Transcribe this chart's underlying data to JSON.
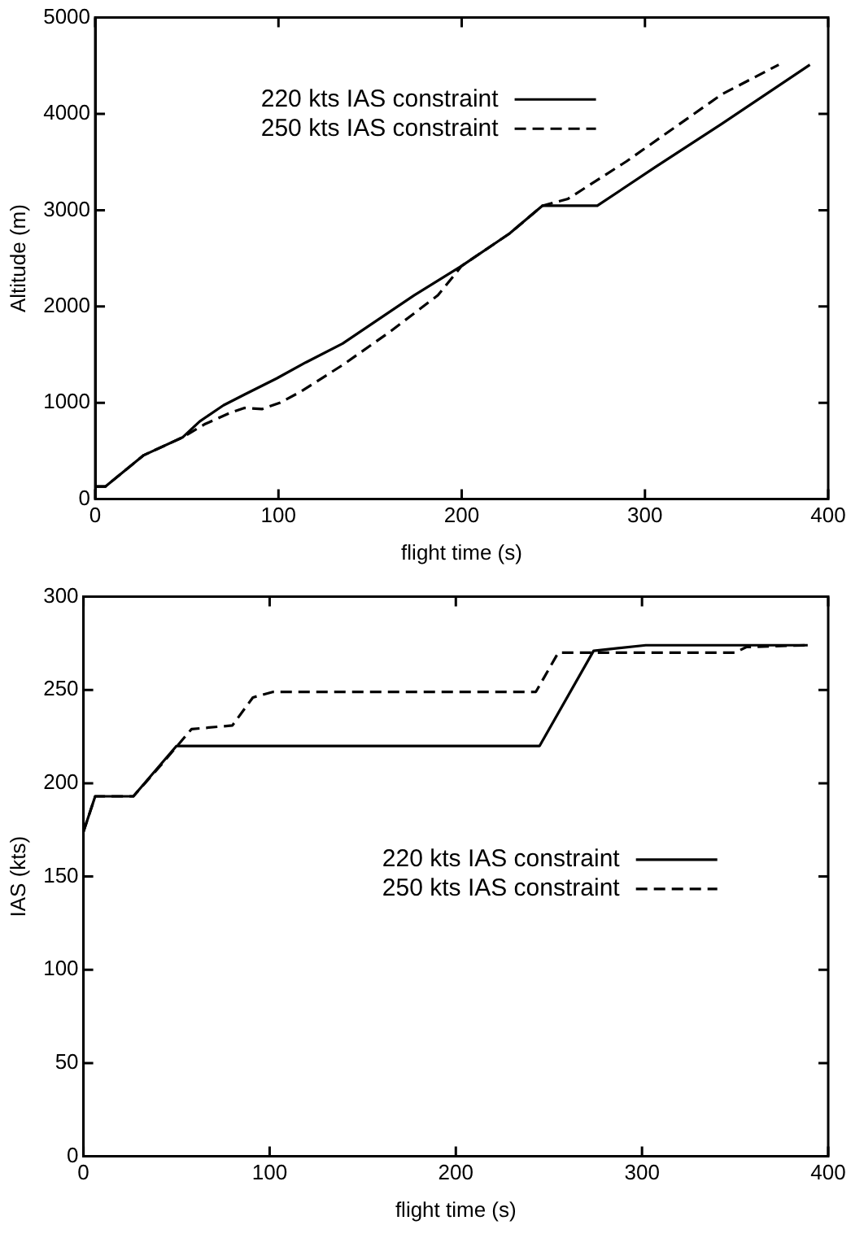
{
  "chart_data": [
    {
      "type": "line",
      "xlabel": "flight time (s)",
      "ylabel": "Altitude (m)",
      "xlim": [
        0,
        400
      ],
      "xticks": [
        0,
        100,
        200,
        300,
        400
      ],
      "ylim": [
        0,
        5000
      ],
      "yticks": [
        0,
        1000,
        2000,
        3000,
        4000,
        5000
      ],
      "legend": "top left",
      "marker": "none",
      "series": [
        {
          "name": "220 kts IAS constraint",
          "color": "#000000",
          "line_style": "solid",
          "x": [
            0,
            5.5,
            26.5,
            47.6,
            57,
            70,
            81.5,
            99,
            115,
            135,
            148,
            174,
            200,
            226,
            244,
            274,
            306,
            342,
            390
          ],
          "values": [
            130,
            130,
            456,
            640,
            807,
            974,
            1086,
            1253,
            1420,
            1615,
            1782,
            2116,
            2422,
            2756,
            3046,
            3046,
            3452,
            3898,
            4510
          ]
        },
        {
          "name": "250 kts IAS constraint",
          "color": "#000000",
          "line_style": "dashed",
          "x": [
            0,
            5.5,
            26.5,
            47.6,
            60,
            73,
            81.5,
            91,
            101,
            112,
            135,
            160,
            187,
            200,
            226,
            244,
            258,
            290,
            342,
            373
          ],
          "values": [
            130,
            130,
            456,
            640,
            780,
            891,
            947,
            935,
            1002,
            1114,
            1392,
            1726,
            2116,
            2422,
            2756,
            3046,
            3118,
            3508,
            4204,
            4510
          ]
        }
      ]
    },
    {
      "type": "line",
      "xlabel": "flight time (s)",
      "ylabel": "IAS (kts)",
      "xlim": [
        0,
        400
      ],
      "xticks": [
        0,
        100,
        200,
        300,
        400
      ],
      "ylim": [
        0,
        300
      ],
      "yticks": [
        0,
        50,
        100,
        150,
        200,
        250,
        300
      ],
      "legend": "right",
      "marker": "none",
      "series": [
        {
          "name": "220 kts IAS constraint",
          "color": "#000000",
          "line_style": "solid",
          "x": [
            0,
            6.3,
            26.8,
            50,
            245,
            274,
            302,
            389
          ],
          "values": [
            174,
            193,
            193,
            220,
            220,
            271,
            274,
            274
          ]
        },
        {
          "name": "250 kts IAS constraint",
          "color": "#000000",
          "line_style": "dashed",
          "x": [
            0,
            6.3,
            26.8,
            41,
            58,
            80,
            91,
            102,
            243,
            255,
            350,
            356,
            389
          ],
          "values": [
            174,
            193,
            193,
            209,
            229,
            231,
            246,
            249,
            249,
            270,
            270,
            273,
            274
          ]
        }
      ]
    }
  ]
}
